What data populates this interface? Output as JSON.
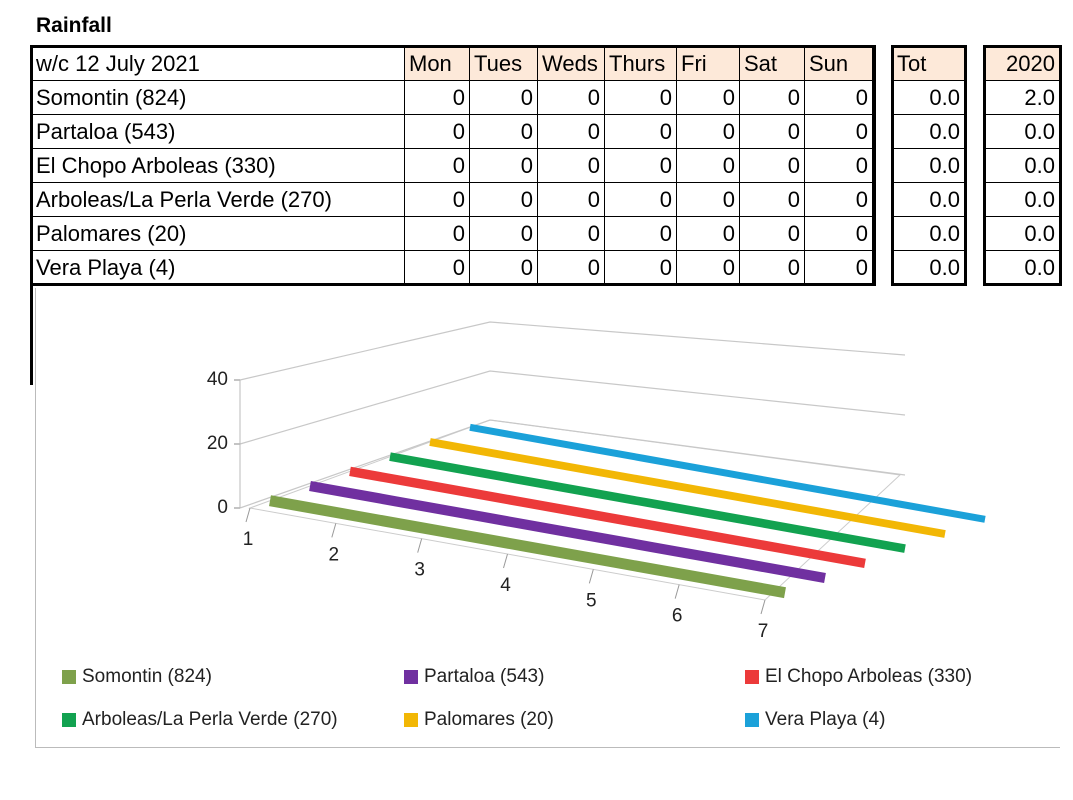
{
  "title": "Rainfall",
  "table": {
    "header": [
      "w/c 12 July 2021",
      "Mon",
      "Tues",
      "Weds",
      "Thurs",
      "Fri",
      "Sat",
      "Sun",
      "Tot",
      "2020"
    ],
    "rows": [
      [
        "Somontin (824)",
        0,
        0,
        0,
        0,
        0,
        0,
        0,
        "0.0",
        "2.0"
      ],
      [
        "Partaloa (543)",
        0,
        0,
        0,
        0,
        0,
        0,
        0,
        "0.0",
        "0.0"
      ],
      [
        "El Chopo Arboleas (330)",
        0,
        0,
        0,
        0,
        0,
        0,
        0,
        "0.0",
        "0.0"
      ],
      [
        "Arboleas/La Perla Verde (270)",
        0,
        0,
        0,
        0,
        0,
        0,
        0,
        "0.0",
        "0.0"
      ],
      [
        "Palomares (20)",
        0,
        0,
        0,
        0,
        0,
        0,
        0,
        "0.0",
        "0.0"
      ],
      [
        "Vera Playa (4)",
        0,
        0,
        0,
        0,
        0,
        0,
        0,
        "0.0",
        "0.0"
      ]
    ]
  },
  "chart_data": {
    "type": "line",
    "x": [
      1,
      2,
      3,
      4,
      5,
      6,
      7
    ],
    "ylim": [
      0,
      40
    ],
    "yticks": [
      0,
      20,
      40
    ],
    "grid": true,
    "series": [
      {
        "name": "Somontin (824)",
        "color": "#7ea14b",
        "values": [
          0,
          0,
          0,
          0,
          0,
          0,
          0
        ]
      },
      {
        "name": "Partaloa (543)",
        "color": "#7030a0",
        "values": [
          0,
          0,
          0,
          0,
          0,
          0,
          0
        ]
      },
      {
        "name": "El Chopo Arboleas (330)",
        "color": "#ec3a3a",
        "values": [
          0,
          0,
          0,
          0,
          0,
          0,
          0
        ]
      },
      {
        "name": "Arboleas/La Perla Verde (270)",
        "color": "#12a250",
        "values": [
          0,
          0,
          0,
          0,
          0,
          0,
          0
        ]
      },
      {
        "name": "Palomares (20)",
        "color": "#f2b705",
        "values": [
          0,
          0,
          0,
          0,
          0,
          0,
          0
        ]
      },
      {
        "name": "Vera Playa (4)",
        "color": "#1ba1d9",
        "values": [
          0,
          0,
          0,
          0,
          0,
          0,
          0
        ]
      }
    ]
  }
}
